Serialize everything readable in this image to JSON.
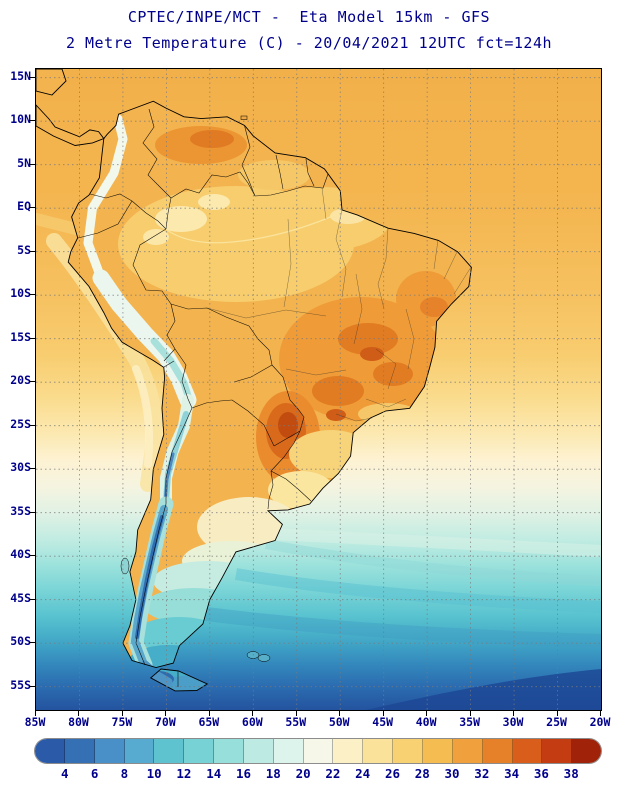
{
  "header": {
    "line1": "CPTEC/INPE/MCT -  Eta Model 15km - GFS",
    "line2": "2 Metre Temperature (C) - 20/04/2021 12UTC fct=124h",
    "text_color": "#00008b"
  },
  "map": {
    "region": "South America",
    "lat_labels": [
      "15N",
      "10N",
      "5N",
      "EQ",
      "5S",
      "10S",
      "15S",
      "20S",
      "25S",
      "30S",
      "35S",
      "40S",
      "45S",
      "50S",
      "55S"
    ],
    "lon_labels": [
      "85W",
      "80W",
      "75W",
      "70W",
      "65W",
      "60W",
      "55W",
      "50W",
      "45W",
      "40W",
      "35W",
      "30W",
      "25W",
      "20W"
    ]
  },
  "colorbar": {
    "unit": "C",
    "tick_labels": [
      "4",
      "6",
      "8",
      "10",
      "12",
      "14",
      "16",
      "18",
      "20",
      "22",
      "24",
      "26",
      "28",
      "30",
      "32",
      "34",
      "36",
      "38"
    ],
    "colors": [
      "#2b5aa8",
      "#3570b5",
      "#4a90c8",
      "#58abd0",
      "#5fc3cf",
      "#76d2d4",
      "#97dfda",
      "#bdebe3",
      "#ddf4ec",
      "#f6f7e8",
      "#fbf0c6",
      "#fae29b",
      "#f8d272",
      "#f5bc52",
      "#f0a03c",
      "#e78129",
      "#d95e1c",
      "#c43d12",
      "#a02208"
    ]
  }
}
